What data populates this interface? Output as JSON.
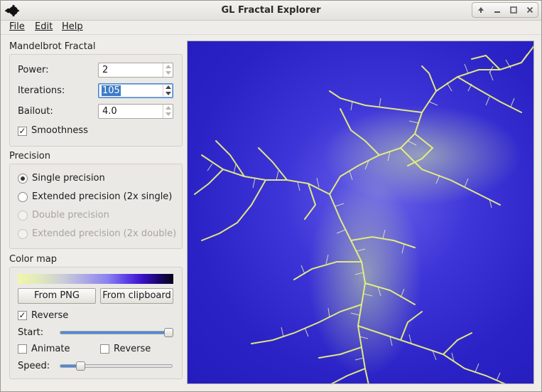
{
  "window": {
    "title": "GL Fractal Explorer"
  },
  "menu": {
    "file": "File",
    "edit": "Edit",
    "help": "Help"
  },
  "mandelbrot": {
    "title": "Mandelbrot Fractal",
    "power": {
      "label": "Power:",
      "value": "2"
    },
    "iterations": {
      "label": "Iterations:",
      "value": "105"
    },
    "bailout": {
      "label": "Bailout:",
      "value": "4.0"
    },
    "smoothness": {
      "label": "Smoothness",
      "checked": true
    }
  },
  "precision": {
    "title": "Precision",
    "options": [
      {
        "label": "Single precision",
        "selected": true,
        "enabled": true
      },
      {
        "label": "Extended precision (2x single)",
        "selected": false,
        "enabled": true
      },
      {
        "label": "Double precision",
        "selected": false,
        "enabled": false
      },
      {
        "label": "Extended precision (2x double)",
        "selected": false,
        "enabled": false
      }
    ]
  },
  "colormap": {
    "title": "Color map",
    "from_png": "From PNG",
    "from_clipboard": "From clipboard",
    "reverse": {
      "label": "Reverse",
      "checked": true
    },
    "start": {
      "label": "Start:",
      "value_percent": 100
    },
    "animate": {
      "label": "Animate",
      "checked": false
    },
    "reverse2": {
      "label": "Reverse",
      "checked": false
    },
    "speed": {
      "label": "Speed:",
      "value_percent": 18
    }
  },
  "colors": {
    "fractal_background": "#2b22c6",
    "fractal_filaments": "#e8f27a",
    "selection": "#3d7ac6",
    "slider_fill": "#4d8ad6"
  }
}
